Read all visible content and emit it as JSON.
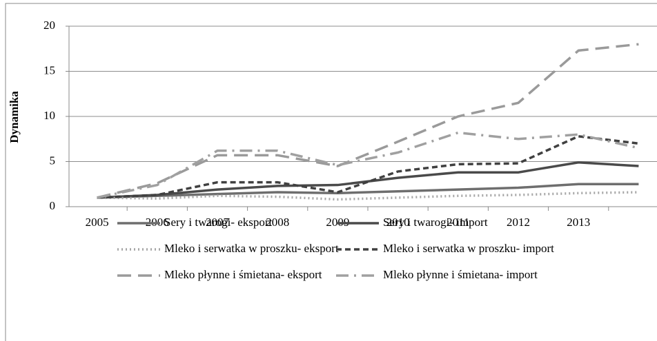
{
  "chart_data": {
    "type": "line",
    "y_label": "Dynamika",
    "categories": [
      "2005",
      "2006",
      "2007",
      "2008",
      "2009",
      "2010",
      "2011",
      "2012",
      "2013",
      null
    ],
    "ylim": [
      0,
      20
    ],
    "yticks": [
      0,
      5,
      10,
      15,
      20
    ],
    "grid": true,
    "series": [
      {
        "name": "Sery i twarogi- eksport",
        "color": "#6e6e6e",
        "dash": "solid",
        "values": [
          1,
          1.2,
          1.4,
          1.6,
          1.5,
          1.7,
          1.9,
          2.1,
          2.5,
          2.5
        ]
      },
      {
        "name": "Sery i twarogi- import",
        "color": "#4a4a4a",
        "dash": "solid",
        "values": [
          1,
          1.3,
          1.9,
          2.3,
          2.4,
          3.2,
          3.8,
          3.8,
          4.9,
          4.5
        ]
      },
      {
        "name": "Mleko i serwatka w proszku- eksport",
        "color": "#a6a6a6",
        "dash": "dotted",
        "values": [
          1,
          0.9,
          1.2,
          1.1,
          0.8,
          1.0,
          1.2,
          1.3,
          1.5,
          1.6
        ]
      },
      {
        "name": "Mleko i serwatka w proszku- import",
        "color": "#404040",
        "dash": "dashed",
        "values": [
          1,
          1.3,
          2.7,
          2.7,
          1.6,
          3.9,
          4.7,
          4.8,
          7.8,
          7.0
        ]
      },
      {
        "name": "Mleko płynne i śmietana- eksport",
        "color": "#9a9a9a",
        "dash": "longdash",
        "values": [
          1,
          2.6,
          5.7,
          5.7,
          4.5,
          7.2,
          10,
          11.5,
          17.3,
          18
        ]
      },
      {
        "name": "Mleko płynne i śmietana- import",
        "color": "#a0a0a0",
        "dash": "dashdot",
        "values": [
          1,
          2.4,
          6.2,
          6.2,
          4.6,
          6.0,
          8.2,
          7.5,
          8.0,
          6.5
        ]
      }
    ]
  }
}
